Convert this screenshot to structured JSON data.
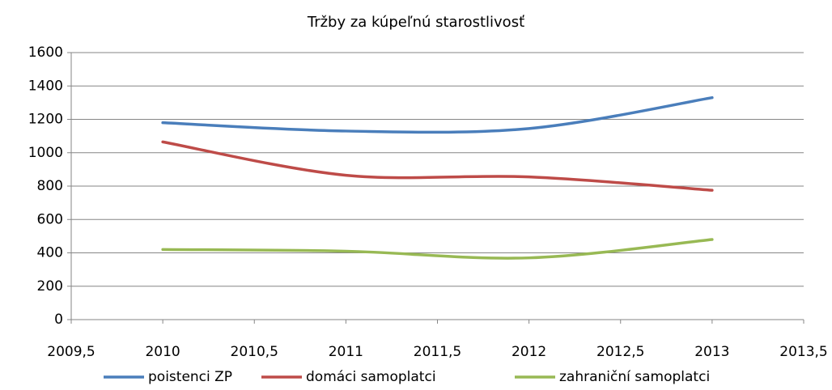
{
  "chart_data": {
    "type": "line",
    "title": "Tržby za kúpeľnú starostlivosť",
    "x": [
      2010,
      2011,
      2012,
      2013
    ],
    "series": [
      {
        "name": "poistenci ZP",
        "color": "#4a7ebb",
        "values": [
          1180,
          1130,
          1145,
          1330
        ]
      },
      {
        "name": "domáci samoplatci",
        "color": "#be4b48",
        "values": [
          1065,
          865,
          855,
          775
        ]
      },
      {
        "name": "zahraniční samoplatci",
        "color": "#98b954",
        "values": [
          420,
          410,
          370,
          480
        ]
      }
    ],
    "xlim": [
      2009.5,
      2013.5
    ],
    "xticks": [
      {
        "value": 2009.5,
        "label": "2009,5"
      },
      2010,
      {
        "value": 2010.5,
        "label": "2010,5"
      },
      2011,
      {
        "value": 2011.5,
        "label": "2011,5"
      },
      2012,
      {
        "value": 2012.5,
        "label": "2012,5"
      },
      2013,
      {
        "value": 2013.5,
        "label": "2013,5"
      }
    ],
    "ylim": [
      0,
      1600
    ],
    "yticks": [
      0,
      200,
      400,
      600,
      800,
      1000,
      1200,
      1400,
      1600
    ],
    "grid": true,
    "smooth": true,
    "legend": "bottom"
  }
}
